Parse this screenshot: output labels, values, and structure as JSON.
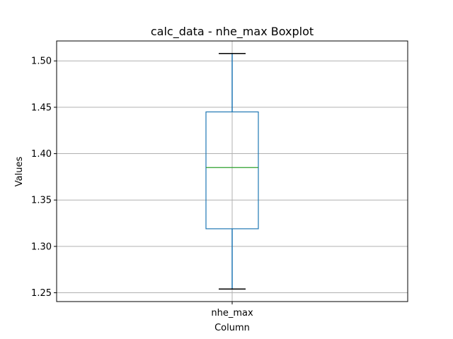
{
  "chart_data": {
    "type": "boxplot",
    "title": "calc_data - nhe_max Boxplot",
    "xlabel": "Column",
    "ylabel": "Values",
    "categories": [
      "nhe_max"
    ],
    "boxes": [
      {
        "category": "nhe_max",
        "whisker_low": 1.254,
        "q1": 1.319,
        "median": 1.385,
        "q3": 1.445,
        "whisker_high": 1.508
      }
    ],
    "ylim": [
      1.2405,
      1.5215
    ],
    "yticks": [
      1.25,
      1.3,
      1.35,
      1.4,
      1.45,
      1.5
    ],
    "ytick_labels": [
      "1.25",
      "1.30",
      "1.35",
      "1.40",
      "1.45",
      "1.50"
    ],
    "grid": true,
    "colors": {
      "box": "#1f77b4",
      "whisker": "#1f77b4",
      "cap": "#000000",
      "median": "#2ca02c",
      "grid": "#b0b0b0",
      "frame": "#000000"
    }
  }
}
